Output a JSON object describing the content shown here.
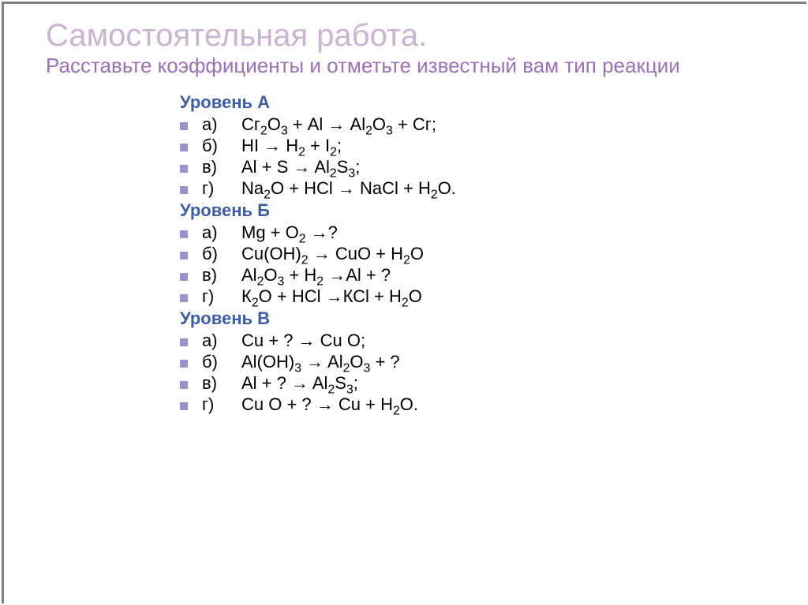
{
  "title": "Самостоятельная  работа.",
  "subtitle": "Расставьте коэффициенты и отметьте известный вам тип реакции",
  "sections": [
    {
      "header": "Уровень А",
      "items": [
        {
          "label": "а)",
          "html": "Сг<sub>2</sub>О<sub>3</sub> + Аl → Аl<sub>2</sub>О<sub>3</sub> + Сг;"
        },
        {
          "label": "б)",
          "html": "HI → H<sub>2</sub> + I<sub>2</sub>;"
        },
        {
          "label": "в)",
          "html": "Al + S → Al<sub>2</sub>S<sub>3</sub>;"
        },
        {
          "label": "г)",
          "html": "Na<sub>2</sub>O + HCl → NaCl + H<sub>2</sub>O."
        }
      ]
    },
    {
      "header": "Уровень Б",
      "items": [
        {
          "label": "а)",
          "html": "Mg + O<sub>2</sub> →?"
        },
        {
          "label": "б)",
          "html": "Cu(OH)<sub>2</sub> → CuO + H<sub>2</sub>O"
        },
        {
          "label": "в)",
          "html": "Al<sub>2</sub>O<sub>3</sub> + H<sub>2</sub> →Al + ?"
        },
        {
          "label": "г)",
          "html": "К<sub>2</sub>О + НСl →КСl + H<sub>2</sub>O"
        }
      ]
    },
    {
      "header": "Уровень В",
      "items": [
        {
          "label": "а)",
          "html": "Cu + ? → Cu O;"
        },
        {
          "label": "б)",
          "html": "Al(OH)<sub>3</sub> → Al<sub>2</sub>O<sub>3</sub> + ?"
        },
        {
          "label": "в)",
          "html": "Al + ? → Al<sub>2</sub>S<sub>3</sub>;"
        },
        {
          "label": "г)",
          "html": "Cu O + ? → Cu + H<sub>2</sub>O."
        }
      ]
    }
  ],
  "colors": {
    "title": "#cbb3d2",
    "subtitle": "#9c6fb6",
    "header": "#3d5da9",
    "text": "#000000",
    "bullet": "#9893cc",
    "background": "#ffffff",
    "border": "#808080"
  },
  "fonts": {
    "title_size": 40,
    "subtitle_size": 26,
    "body_size": 22,
    "header_weight": 700
  }
}
